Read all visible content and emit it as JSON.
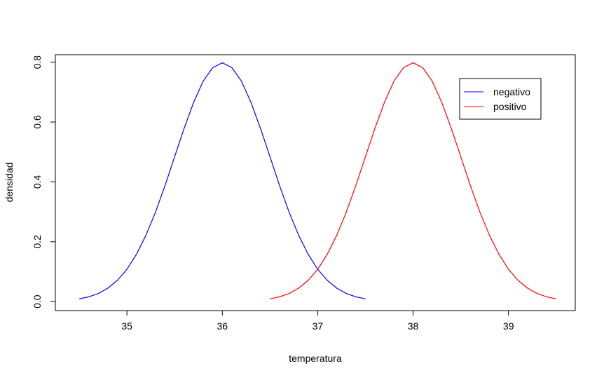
{
  "chart_data": {
    "type": "line",
    "xlabel": "temperatura",
    "ylabel": "densidad",
    "xlim": [
      34.25,
      39.7
    ],
    "ylim": [
      -0.03,
      0.825
    ],
    "x_ticks": [
      35,
      36,
      37,
      38,
      39
    ],
    "x_tick_labels": [
      "35",
      "36",
      "37",
      "38",
      "39"
    ],
    "y_ticks": [
      0.0,
      0.2,
      0.4,
      0.6,
      0.8
    ],
    "y_tick_labels": [
      "0.0",
      "0.2",
      "0.4",
      "0.6",
      "0.8"
    ],
    "grid": false,
    "legend_position": "top-right",
    "series": [
      {
        "name": "negativo",
        "color": "#0000ff",
        "x": [
          35.5,
          35.6,
          35.7,
          35.8,
          35.9,
          36.0,
          36.1,
          36.2,
          36.3,
          36.4,
          36.5,
          36.6,
          36.7,
          36.8,
          36.9,
          37.0,
          37.1,
          37.2,
          37.3,
          37.4,
          37.5,
          34.5,
          34.6,
          34.7,
          34.8,
          34.9,
          35.0,
          35.1,
          35.2,
          35.3,
          35.4
        ],
        "y": [
          0.484,
          0.579,
          0.666,
          0.737,
          0.782,
          0.798,
          0.782,
          0.737,
          0.666,
          0.579,
          0.484,
          0.388,
          0.299,
          0.222,
          0.158,
          0.108,
          0.071,
          0.045,
          0.027,
          0.016,
          0.009,
          0.009,
          0.016,
          0.027,
          0.045,
          0.071,
          0.108,
          0.158,
          0.222,
          0.299,
          0.388
        ]
      },
      {
        "name": "positivo",
        "color": "#ff0000",
        "x": [
          36.5,
          36.6,
          36.7,
          36.8,
          36.9,
          37.0,
          37.1,
          37.2,
          37.3,
          37.4,
          37.5,
          37.6,
          37.7,
          37.8,
          37.9,
          38.0,
          38.1,
          38.2,
          38.3,
          38.4,
          38.5,
          38.6,
          38.7,
          38.8,
          38.9,
          39.0,
          39.1,
          39.2,
          39.3,
          39.4,
          39.5
        ],
        "y": [
          0.009,
          0.016,
          0.027,
          0.045,
          0.071,
          0.108,
          0.158,
          0.222,
          0.299,
          0.388,
          0.484,
          0.579,
          0.666,
          0.737,
          0.782,
          0.798,
          0.782,
          0.737,
          0.666,
          0.579,
          0.484,
          0.388,
          0.299,
          0.222,
          0.158,
          0.108,
          0.071,
          0.045,
          0.027,
          0.016,
          0.009
        ]
      }
    ]
  }
}
